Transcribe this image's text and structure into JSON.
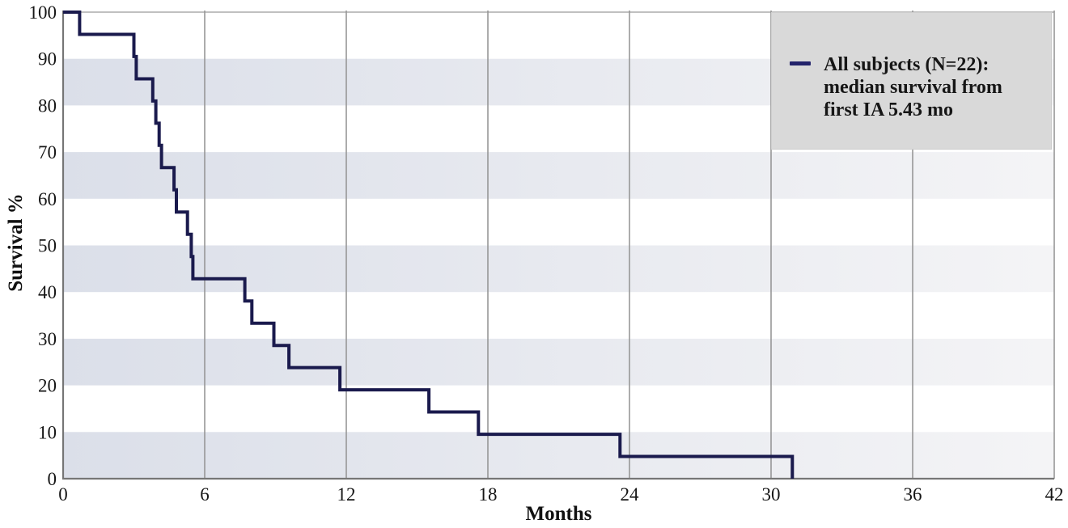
{
  "figure": {
    "background": "#ffffff"
  },
  "y_axis": {
    "title": "Survival %",
    "ticks": [
      0,
      10,
      20,
      30,
      40,
      50,
      60,
      70,
      80,
      90,
      100
    ]
  },
  "x_axis": {
    "title": "Months",
    "ticks": [
      0,
      6,
      12,
      18,
      24,
      30,
      36,
      42
    ]
  },
  "legend": {
    "lines": [
      "All subjects (N=22):",
      "median survival from",
      "first IA 5.43 mo"
    ],
    "marker_color": "#23236b",
    "background": "#d9d9d9"
  },
  "chart_data": {
    "type": "line",
    "subtype": "kaplan-meier-step",
    "title": "",
    "xlabel": "Months",
    "ylabel": "Survival %",
    "xlim": [
      0,
      42
    ],
    "ylim": [
      0,
      100
    ],
    "grid": "vertical-at-x-ticks",
    "legend_position": "top-right",
    "bands_y_ranges": [
      [
        0,
        10
      ],
      [
        20,
        30
      ],
      [
        40,
        50
      ],
      [
        60,
        70
      ],
      [
        80,
        90
      ]
    ],
    "band_gradient": [
      "#dbdfe9",
      "#f4f4f6"
    ],
    "gridline_color": "#979797",
    "axis_color": "#767676",
    "top_border_color": "#ababab",
    "series": [
      {
        "name": "All subjects (N=22): median survival from first IA 5.43 mo",
        "n_subjects": 22,
        "median_survival_months": 5.43,
        "color": "#1a1a4d",
        "start": {
          "t": 0,
          "s": 100
        },
        "steps": [
          {
            "t": 0.7,
            "s": 95.24
          },
          {
            "t": 3.0,
            "s": 90.48
          },
          {
            "t": 3.1,
            "s": 85.71
          },
          {
            "t": 3.8,
            "s": 80.95
          },
          {
            "t": 3.93,
            "s": 76.19
          },
          {
            "t": 4.07,
            "s": 71.43
          },
          {
            "t": 4.17,
            "s": 66.67
          },
          {
            "t": 4.7,
            "s": 61.9
          },
          {
            "t": 4.8,
            "s": 57.14
          },
          {
            "t": 5.27,
            "s": 52.38
          },
          {
            "t": 5.43,
            "s": 47.62
          },
          {
            "t": 5.5,
            "s": 42.86
          },
          {
            "t": 7.7,
            "s": 38.1
          },
          {
            "t": 8.0,
            "s": 33.33
          },
          {
            "t": 8.93,
            "s": 28.57
          },
          {
            "t": 9.57,
            "s": 23.81
          },
          {
            "t": 11.73,
            "s": 19.05
          },
          {
            "t": 15.5,
            "s": 14.29
          },
          {
            "t": 17.6,
            "s": 9.52
          },
          {
            "t": 23.6,
            "s": 4.76
          },
          {
            "t": 30.9,
            "s": 0
          }
        ]
      }
    ]
  }
}
